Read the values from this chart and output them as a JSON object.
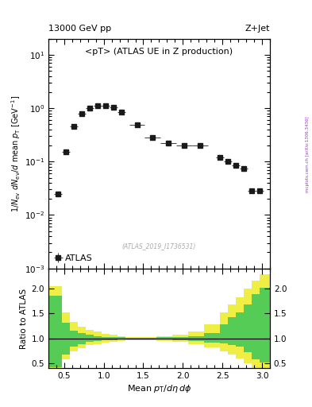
{
  "title_top_left": "13000 GeV pp",
  "title_top_right": "Z+Jet",
  "main_title": "<pT> (ATLAS UE in Z production)",
  "ylabel_main": "1/N_{ev} dN_{ev}/d mean p_{T} [GeV^{-1}]",
  "ylabel_ratio": "Ratio to ATLAS",
  "xlabel": "Mean p_{T}/d\\eta d\\phi",
  "watermark": "(ATLAS_2019_I1736531)",
  "side_text": "mcplots.cern.ch [arXiv:1306.3436]",
  "data_x": [
    0.42,
    0.52,
    0.62,
    0.72,
    0.82,
    0.92,
    1.02,
    1.12,
    1.22,
    1.42,
    1.62,
    1.82,
    2.02,
    2.22,
    2.47,
    2.57,
    2.67,
    2.77,
    2.87,
    2.97
  ],
  "data_y": [
    0.025,
    0.15,
    0.45,
    0.78,
    1.0,
    1.1,
    1.1,
    1.05,
    0.85,
    0.48,
    0.28,
    0.22,
    0.2,
    0.2,
    0.12,
    0.1,
    0.085,
    0.075,
    0.028,
    0.028
  ],
  "data_xerr": [
    0.05,
    0.05,
    0.05,
    0.05,
    0.05,
    0.05,
    0.05,
    0.05,
    0.05,
    0.1,
    0.1,
    0.1,
    0.1,
    0.1,
    0.05,
    0.05,
    0.05,
    0.05,
    0.05,
    0.05
  ],
  "data_yerr": [
    0.002,
    0.01,
    0.02,
    0.03,
    0.03,
    0.03,
    0.03,
    0.03,
    0.02,
    0.02,
    0.012,
    0.01,
    0.01,
    0.01,
    0.006,
    0.006,
    0.005,
    0.004,
    0.002,
    0.002
  ],
  "data_color": "#1a1a1a",
  "data_markersize": 4.5,
  "ylim_main": [
    0.001,
    20
  ],
  "xlim": [
    0.3,
    3.1
  ],
  "ratio_bins_x": [
    0.3,
    0.47,
    0.57,
    0.67,
    0.77,
    0.87,
    0.97,
    1.07,
    1.17,
    1.27,
    1.47,
    1.67,
    1.87,
    2.07,
    2.27,
    2.47,
    2.57,
    2.67,
    2.77,
    2.87,
    2.97,
    3.1
  ],
  "ratio_green_lo": [
    0.42,
    0.68,
    0.84,
    0.89,
    0.93,
    0.95,
    0.97,
    0.97,
    0.98,
    0.99,
    0.99,
    0.98,
    0.97,
    0.95,
    0.92,
    0.9,
    0.87,
    0.83,
    0.72,
    0.58,
    0.52
  ],
  "ratio_green_hi": [
    1.85,
    1.32,
    1.16,
    1.11,
    1.07,
    1.05,
    1.03,
    1.03,
    1.02,
    1.01,
    1.01,
    1.02,
    1.03,
    1.05,
    1.1,
    1.28,
    1.42,
    1.52,
    1.68,
    1.88,
    2.02
  ],
  "ratio_yellow_lo": [
    0.38,
    0.58,
    0.74,
    0.81,
    0.86,
    0.89,
    0.92,
    0.93,
    0.95,
    0.97,
    0.97,
    0.95,
    0.93,
    0.89,
    0.82,
    0.74,
    0.68,
    0.6,
    0.5,
    0.4,
    0.35
  ],
  "ratio_yellow_hi": [
    2.05,
    1.52,
    1.33,
    1.23,
    1.17,
    1.13,
    1.09,
    1.07,
    1.05,
    1.03,
    1.03,
    1.05,
    1.08,
    1.13,
    1.28,
    1.52,
    1.68,
    1.83,
    2.0,
    2.15,
    2.28
  ],
  "ratio_ylim": [
    0.4,
    2.4
  ],
  "ratio_yticks": [
    0.5,
    1.0,
    1.5,
    2.0
  ],
  "green_color": "#55cc55",
  "yellow_color": "#eeee44"
}
